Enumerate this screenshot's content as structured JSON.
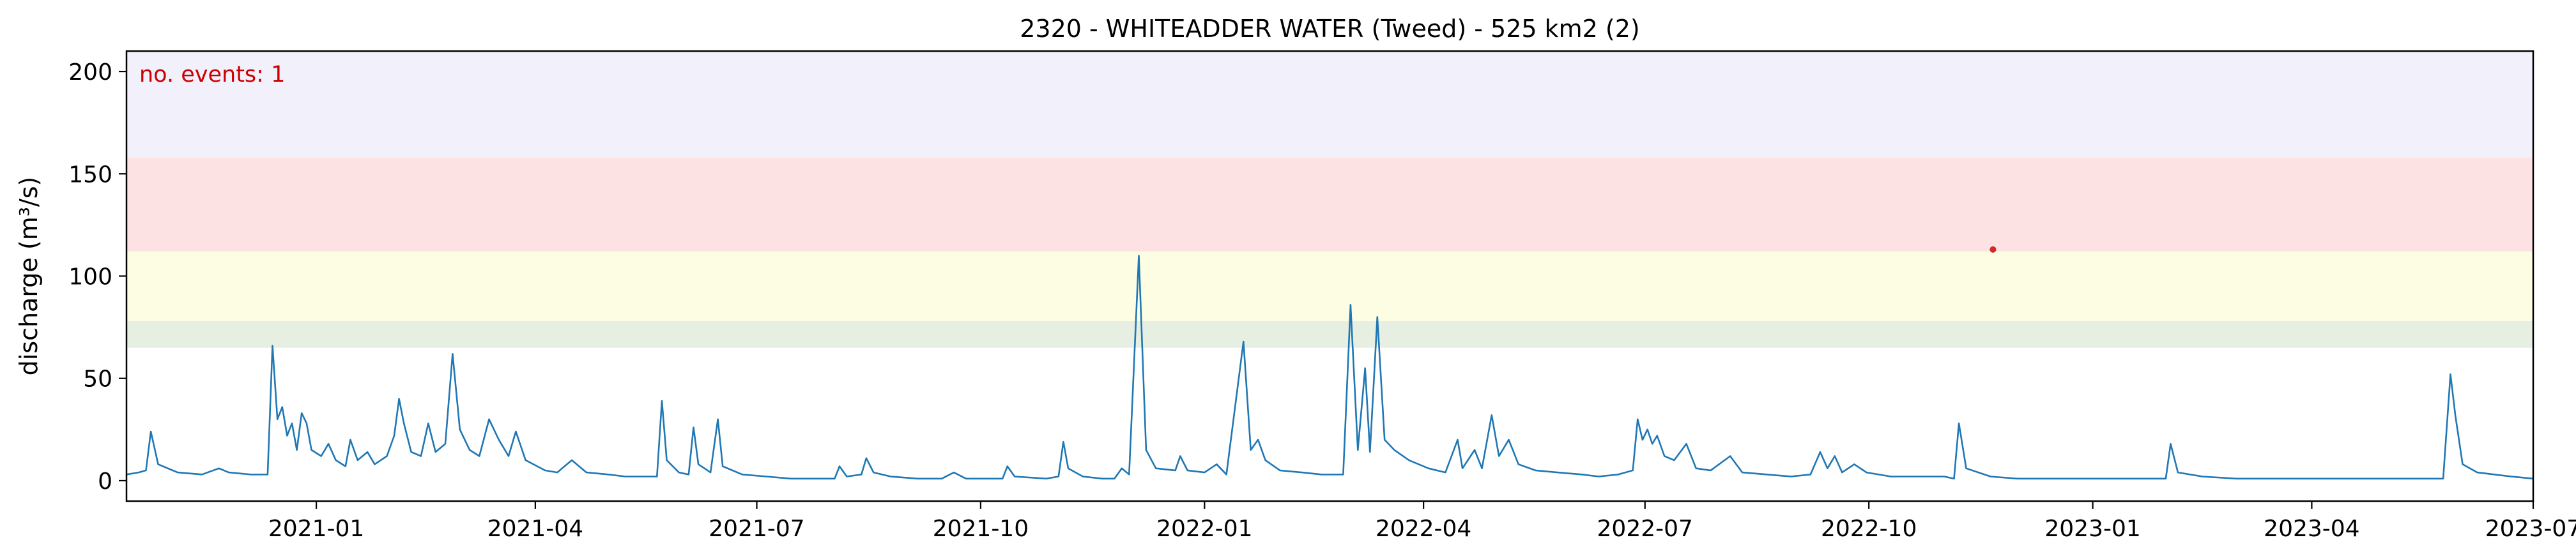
{
  "chart_data": {
    "type": "line",
    "title": "2320 - WHITEADDER WATER (Tweed) - 525 km2 (2)",
    "xlabel": "",
    "ylabel": "discharge (m³/s)",
    "annotation": "no. events: 1",
    "xlim": [
      "2020-10-15",
      "2023-07-01"
    ],
    "ylim": [
      -10,
      210
    ],
    "x_ticks": [
      "2021-01",
      "2021-04",
      "2021-07",
      "2021-10",
      "2022-01",
      "2022-04",
      "2022-07",
      "2022-10",
      "2023-01",
      "2023-04",
      "2023-07"
    ],
    "y_ticks": [
      0,
      50,
      100,
      150,
      200
    ],
    "grid": false,
    "threshold_bands": [
      {
        "from": 65,
        "to": 78,
        "color": "#e6efe2"
      },
      {
        "from": 78,
        "to": 112,
        "color": "#fdfde4"
      },
      {
        "from": 112,
        "to": 158,
        "color": "#fde2e4"
      },
      {
        "from": 158,
        "to": 210,
        "color": "#f2f0fb"
      }
    ],
    "series": [
      {
        "color": "#1f77b4",
        "points": [
          [
            "2020-10-15",
            3
          ],
          [
            "2020-10-20",
            4
          ],
          [
            "2020-10-23",
            5
          ],
          [
            "2020-10-25",
            24
          ],
          [
            "2020-10-28",
            8
          ],
          [
            "2020-11-05",
            4
          ],
          [
            "2020-11-15",
            3
          ],
          [
            "2020-11-22",
            6
          ],
          [
            "2020-11-26",
            4
          ],
          [
            "2020-12-05",
            3
          ],
          [
            "2020-12-12",
            3
          ],
          [
            "2020-12-14",
            66
          ],
          [
            "2020-12-16",
            30
          ],
          [
            "2020-12-18",
            36
          ],
          [
            "2020-12-20",
            22
          ],
          [
            "2020-12-22",
            28
          ],
          [
            "2020-12-24",
            15
          ],
          [
            "2020-12-26",
            33
          ],
          [
            "2020-12-28",
            28
          ],
          [
            "2020-12-30",
            15
          ],
          [
            "2021-01-03",
            12
          ],
          [
            "2021-01-06",
            18
          ],
          [
            "2021-01-09",
            10
          ],
          [
            "2021-01-13",
            7
          ],
          [
            "2021-01-15",
            20
          ],
          [
            "2021-01-18",
            10
          ],
          [
            "2021-01-22",
            14
          ],
          [
            "2021-01-25",
            8
          ],
          [
            "2021-01-30",
            12
          ],
          [
            "2021-02-02",
            22
          ],
          [
            "2021-02-04",
            40
          ],
          [
            "2021-02-06",
            28
          ],
          [
            "2021-02-09",
            14
          ],
          [
            "2021-02-13",
            12
          ],
          [
            "2021-02-16",
            28
          ],
          [
            "2021-02-19",
            14
          ],
          [
            "2021-02-23",
            18
          ],
          [
            "2021-02-26",
            62
          ],
          [
            "2021-03-01",
            25
          ],
          [
            "2021-03-05",
            15
          ],
          [
            "2021-03-09",
            12
          ],
          [
            "2021-03-13",
            30
          ],
          [
            "2021-03-17",
            20
          ],
          [
            "2021-03-21",
            12
          ],
          [
            "2021-03-24",
            24
          ],
          [
            "2021-03-28",
            10
          ],
          [
            "2021-04-05",
            5
          ],
          [
            "2021-04-10",
            4
          ],
          [
            "2021-04-16",
            10
          ],
          [
            "2021-04-22",
            4
          ],
          [
            "2021-05-01",
            3
          ],
          [
            "2021-05-08",
            2
          ],
          [
            "2021-05-15",
            2
          ],
          [
            "2021-05-21",
            2
          ],
          [
            "2021-05-23",
            39
          ],
          [
            "2021-05-25",
            10
          ],
          [
            "2021-05-30",
            4
          ],
          [
            "2021-06-03",
            3
          ],
          [
            "2021-06-05",
            26
          ],
          [
            "2021-06-07",
            8
          ],
          [
            "2021-06-12",
            4
          ],
          [
            "2021-06-15",
            30
          ],
          [
            "2021-06-17",
            7
          ],
          [
            "2021-06-25",
            3
          ],
          [
            "2021-07-05",
            2
          ],
          [
            "2021-07-15",
            1
          ],
          [
            "2021-07-25",
            1
          ],
          [
            "2021-08-02",
            1
          ],
          [
            "2021-08-04",
            7
          ],
          [
            "2021-08-07",
            2
          ],
          [
            "2021-08-13",
            3
          ],
          [
            "2021-08-15",
            11
          ],
          [
            "2021-08-18",
            4
          ],
          [
            "2021-08-25",
            2
          ],
          [
            "2021-09-05",
            1
          ],
          [
            "2021-09-15",
            1
          ],
          [
            "2021-09-20",
            4
          ],
          [
            "2021-09-25",
            1
          ],
          [
            "2021-10-05",
            1
          ],
          [
            "2021-10-10",
            1
          ],
          [
            "2021-10-12",
            7
          ],
          [
            "2021-10-15",
            2
          ],
          [
            "2021-10-28",
            1
          ],
          [
            "2021-11-02",
            2
          ],
          [
            "2021-11-04",
            19
          ],
          [
            "2021-11-06",
            6
          ],
          [
            "2021-11-12",
            2
          ],
          [
            "2021-11-20",
            1
          ],
          [
            "2021-11-25",
            1
          ],
          [
            "2021-11-28",
            6
          ],
          [
            "2021-12-01",
            3
          ],
          [
            "2021-12-05",
            110
          ],
          [
            "2021-12-08",
            15
          ],
          [
            "2021-12-12",
            6
          ],
          [
            "2021-12-20",
            5
          ],
          [
            "2021-12-22",
            12
          ],
          [
            "2021-12-25",
            5
          ],
          [
            "2022-01-01",
            4
          ],
          [
            "2022-01-06",
            8
          ],
          [
            "2022-01-10",
            3
          ],
          [
            "2022-01-17",
            68
          ],
          [
            "2022-01-20",
            15
          ],
          [
            "2022-01-23",
            20
          ],
          [
            "2022-01-26",
            10
          ],
          [
            "2022-02-01",
            5
          ],
          [
            "2022-02-10",
            4
          ],
          [
            "2022-02-18",
            3
          ],
          [
            "2022-02-27",
            3
          ],
          [
            "2022-03-02",
            86
          ],
          [
            "2022-03-05",
            15
          ],
          [
            "2022-03-08",
            55
          ],
          [
            "2022-03-10",
            14
          ],
          [
            "2022-03-13",
            80
          ],
          [
            "2022-03-16",
            20
          ],
          [
            "2022-03-20",
            15
          ],
          [
            "2022-03-26",
            10
          ],
          [
            "2022-04-03",
            6
          ],
          [
            "2022-04-10",
            4
          ],
          [
            "2022-04-15",
            20
          ],
          [
            "2022-04-17",
            6
          ],
          [
            "2022-04-22",
            15
          ],
          [
            "2022-04-25",
            6
          ],
          [
            "2022-04-29",
            32
          ],
          [
            "2022-05-02",
            12
          ],
          [
            "2022-05-06",
            20
          ],
          [
            "2022-05-10",
            8
          ],
          [
            "2022-05-17",
            5
          ],
          [
            "2022-05-26",
            4
          ],
          [
            "2022-06-05",
            3
          ],
          [
            "2022-06-12",
            2
          ],
          [
            "2022-06-20",
            3
          ],
          [
            "2022-06-26",
            5
          ],
          [
            "2022-06-28",
            30
          ],
          [
            "2022-06-30",
            20
          ],
          [
            "2022-07-02",
            25
          ],
          [
            "2022-07-04",
            18
          ],
          [
            "2022-07-06",
            22
          ],
          [
            "2022-07-09",
            12
          ],
          [
            "2022-07-13",
            10
          ],
          [
            "2022-07-18",
            18
          ],
          [
            "2022-07-22",
            6
          ],
          [
            "2022-07-28",
            5
          ],
          [
            "2022-08-05",
            12
          ],
          [
            "2022-08-10",
            4
          ],
          [
            "2022-08-20",
            3
          ],
          [
            "2022-08-30",
            2
          ],
          [
            "2022-09-07",
            3
          ],
          [
            "2022-09-11",
            14
          ],
          [
            "2022-09-14",
            6
          ],
          [
            "2022-09-17",
            12
          ],
          [
            "2022-09-20",
            4
          ],
          [
            "2022-09-25",
            8
          ],
          [
            "2022-09-30",
            4
          ],
          [
            "2022-10-10",
            2
          ],
          [
            "2022-10-20",
            2
          ],
          [
            "2022-11-01",
            2
          ],
          [
            "2022-11-05",
            1
          ],
          [
            "2022-11-07",
            28
          ],
          [
            "2022-11-10",
            6
          ],
          [
            "2022-11-20",
            2
          ],
          [
            "2022-12-01",
            1
          ],
          [
            "2022-12-10",
            1
          ],
          [
            "2022-12-15",
            1
          ],
          [
            "2023-01-05",
            1
          ],
          [
            "2023-01-20",
            1
          ],
          [
            "2023-01-31",
            1
          ],
          [
            "2023-02-02",
            18
          ],
          [
            "2023-02-05",
            4
          ],
          [
            "2023-02-15",
            2
          ],
          [
            "2023-03-01",
            1
          ],
          [
            "2023-03-15",
            1
          ],
          [
            "2023-03-30",
            1
          ],
          [
            "2023-04-10",
            1
          ],
          [
            "2023-04-20",
            1
          ],
          [
            "2023-05-01",
            1
          ],
          [
            "2023-05-15",
            1
          ],
          [
            "2023-05-25",
            1
          ],
          [
            "2023-05-28",
            52
          ],
          [
            "2023-05-30",
            32
          ],
          [
            "2023-06-02",
            8
          ],
          [
            "2023-06-08",
            4
          ],
          [
            "2023-06-15",
            3
          ],
          [
            "2023-06-22",
            2
          ],
          [
            "2023-07-01",
            1
          ]
        ]
      }
    ],
    "events": [
      {
        "x": "2022-11-21",
        "y": 113,
        "color": "#d62728"
      }
    ]
  }
}
